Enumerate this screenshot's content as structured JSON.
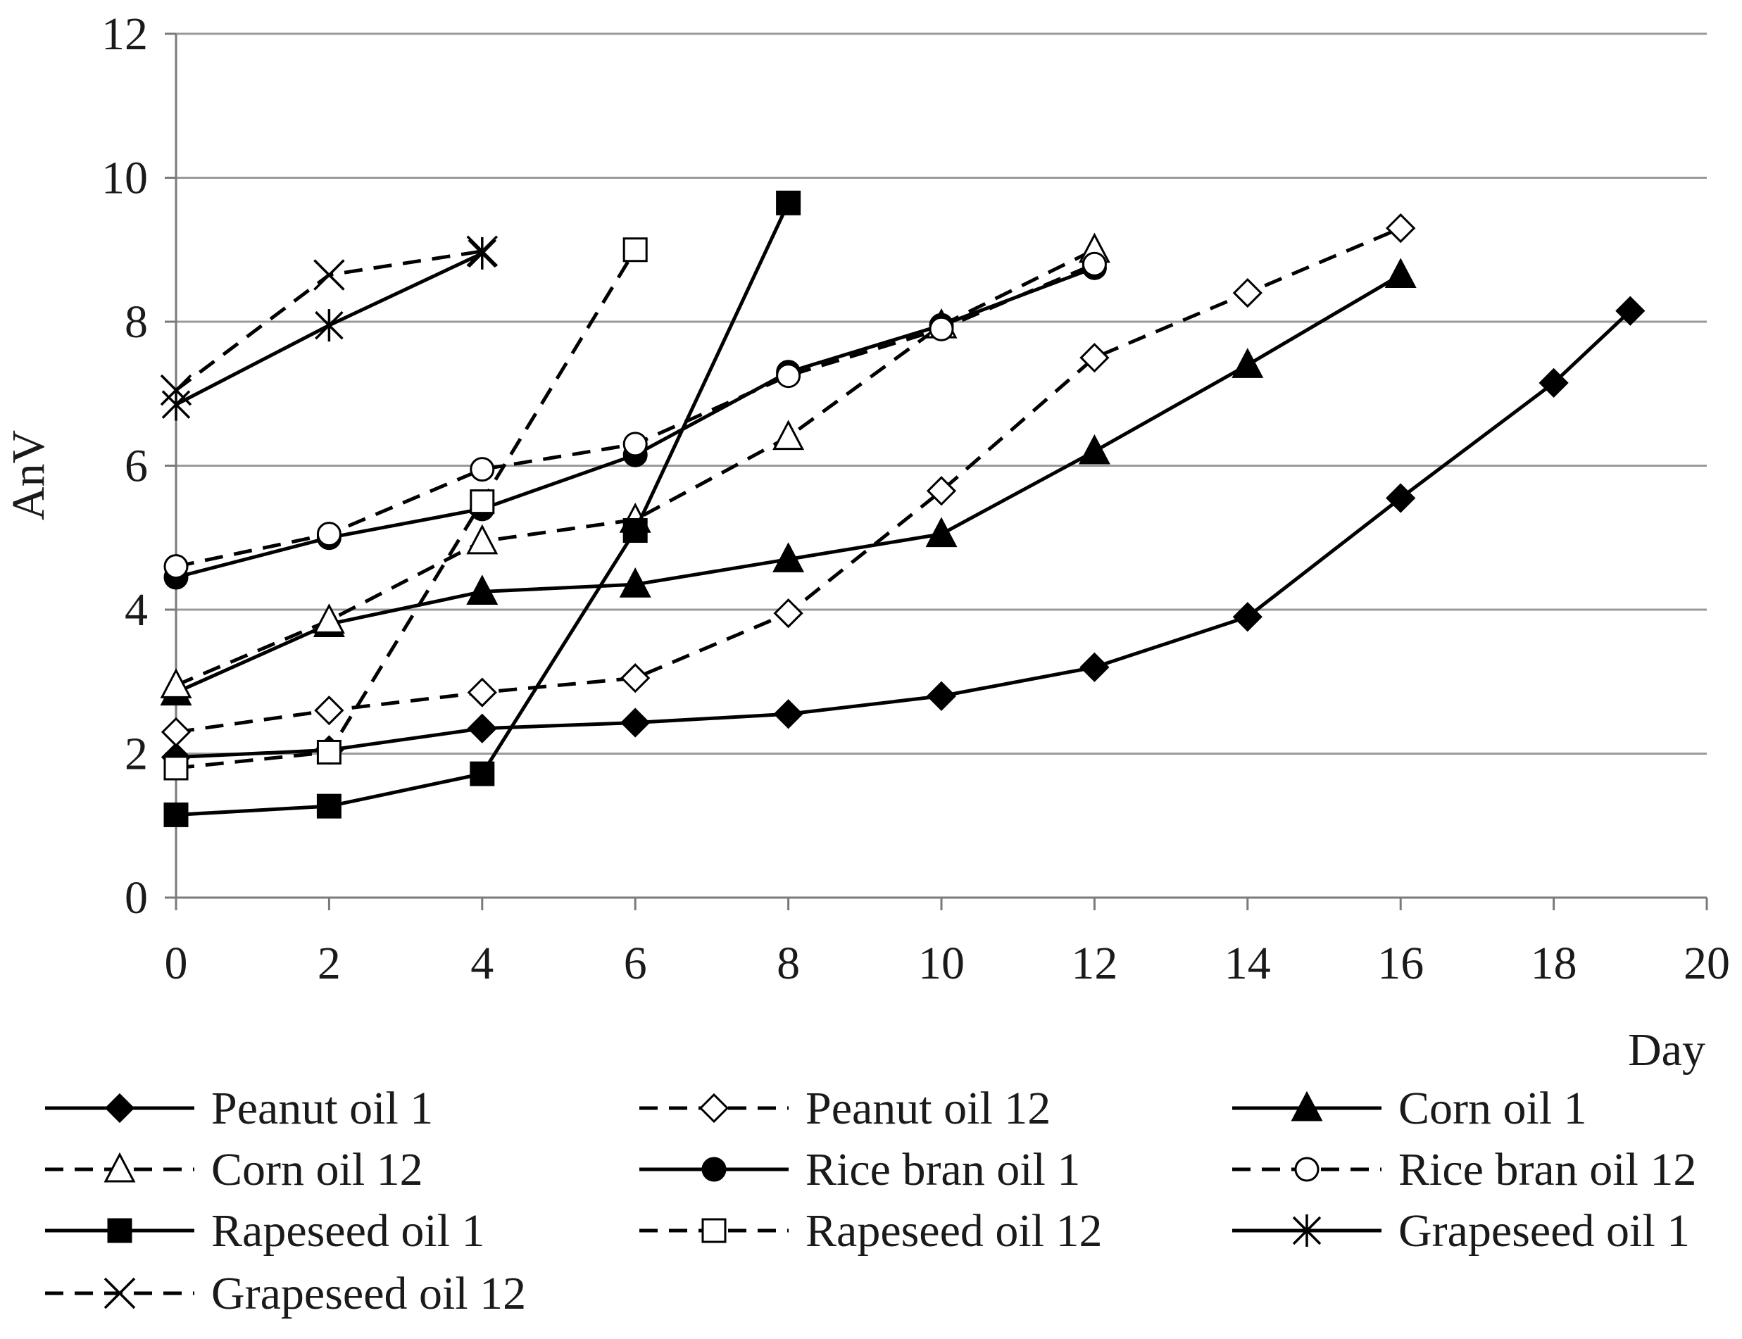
{
  "chart_data": {
    "type": "line",
    "title": "",
    "xlabel": "Day",
    "ylabel": "AnV",
    "xlim": [
      0,
      20
    ],
    "ylim": [
      0,
      12
    ],
    "x_ticks": [
      0,
      2,
      4,
      6,
      8,
      10,
      12,
      14,
      16,
      18,
      20
    ],
    "y_ticks": [
      0,
      2,
      4,
      6,
      8,
      10,
      12
    ],
    "grid": "horizontal",
    "legend_position": "bottom",
    "series": [
      {
        "name": "Peanut oil 1",
        "line": "solid",
        "marker": "diamond-filled",
        "x": [
          0,
          2,
          4,
          6,
          8,
          10,
          12,
          14,
          16,
          18,
          19
        ],
        "y": [
          1.95,
          2.05,
          2.35,
          2.43,
          2.55,
          2.8,
          3.2,
          3.9,
          5.55,
          7.15,
          8.15
        ]
      },
      {
        "name": "Peanut oil 12",
        "line": "dashed",
        "marker": "diamond-open",
        "x": [
          0,
          2,
          4,
          6,
          8,
          10,
          12,
          14,
          16
        ],
        "y": [
          2.3,
          2.6,
          2.85,
          3.05,
          3.95,
          5.65,
          7.5,
          8.4,
          9.3
        ]
      },
      {
        "name": "Corn oil 1",
        "line": "solid",
        "marker": "triangle-filled",
        "x": [
          0,
          2,
          4,
          6,
          8,
          10,
          12,
          14,
          16
        ],
        "y": [
          2.85,
          3.8,
          4.25,
          4.35,
          4.7,
          5.05,
          6.2,
          7.4,
          8.65
        ]
      },
      {
        "name": "Corn oil 12",
        "line": "dashed",
        "marker": "triangle-open",
        "x": [
          0,
          2,
          4,
          6,
          8,
          10,
          12
        ],
        "y": [
          2.95,
          3.85,
          4.95,
          5.25,
          6.4,
          7.95,
          9.0
        ]
      },
      {
        "name": "Rice bran oil 1",
        "line": "solid",
        "marker": "circle-filled",
        "x": [
          0,
          2,
          4,
          6,
          8,
          10,
          12
        ],
        "y": [
          4.45,
          5.0,
          5.4,
          6.15,
          7.3,
          7.95,
          8.75
        ]
      },
      {
        "name": "Rice bran oil 12",
        "line": "dashed",
        "marker": "circle-open",
        "x": [
          0,
          2,
          4,
          6,
          8,
          10,
          12
        ],
        "y": [
          4.6,
          5.05,
          5.95,
          6.3,
          7.25,
          7.9,
          8.8
        ]
      },
      {
        "name": "Rapeseed oil 1",
        "line": "solid",
        "marker": "square-filled",
        "x": [
          0,
          2,
          4,
          6,
          8
        ],
        "y": [
          1.15,
          1.27,
          1.72,
          5.1,
          9.65
        ]
      },
      {
        "name": "Rapeseed oil 12",
        "line": "dashed",
        "marker": "square-open",
        "x": [
          0,
          2,
          4,
          6
        ],
        "y": [
          1.8,
          2.02,
          5.5,
          9.0
        ]
      },
      {
        "name": "Grapeseed oil 1",
        "line": "solid",
        "marker": "asterisk",
        "x": [
          0,
          2,
          4
        ],
        "y": [
          6.85,
          7.95,
          8.95
        ]
      },
      {
        "name": "Grapeseed oil 12",
        "line": "dashed",
        "marker": "cross",
        "x": [
          0,
          2,
          4
        ],
        "y": [
          7.05,
          8.65,
          8.98
        ]
      }
    ]
  }
}
